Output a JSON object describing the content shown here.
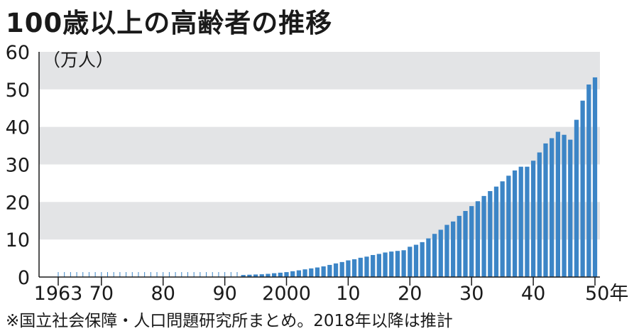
{
  "title": "100歳以上の高齢者の推移",
  "note": "※国立社会保障・人口問題研究所まとめ。2018年以降は推計",
  "colors": {
    "bar": "#3c85c6",
    "band": "#e3e4e6",
    "axis": "#1a1a1a"
  },
  "chart_data": {
    "type": "bar",
    "title": "100歳以上の高齢者の推移",
    "ylabel": "（万人）",
    "xlabel": "",
    "ylim": [
      0,
      60
    ],
    "yticks": [
      "0",
      "10",
      "20",
      "30",
      "40",
      "50",
      "60"
    ],
    "xticks": [
      {
        "year": 1963,
        "label": "1963"
      },
      {
        "year": 1970,
        "label": "70"
      },
      {
        "year": 1980,
        "label": "80"
      },
      {
        "year": 1990,
        "label": "90"
      },
      {
        "year": 2000,
        "label": "2000"
      },
      {
        "year": 2010,
        "label": "10"
      },
      {
        "year": 2020,
        "label": "20"
      },
      {
        "year": 2030,
        "label": "30"
      },
      {
        "year": 2040,
        "label": "40"
      },
      {
        "year": 2050,
        "label": "50年"
      }
    ],
    "grid": "alternating horizontal bands",
    "categories": [
      1963,
      1964,
      1965,
      1966,
      1967,
      1968,
      1969,
      1970,
      1971,
      1972,
      1973,
      1974,
      1975,
      1976,
      1977,
      1978,
      1979,
      1980,
      1981,
      1982,
      1983,
      1984,
      1985,
      1986,
      1987,
      1988,
      1989,
      1990,
      1991,
      1992,
      1993,
      1994,
      1995,
      1996,
      1997,
      1998,
      1999,
      2000,
      2001,
      2002,
      2003,
      2004,
      2005,
      2006,
      2007,
      2008,
      2009,
      2010,
      2011,
      2012,
      2013,
      2014,
      2015,
      2016,
      2017,
      2018,
      2019,
      2020,
      2021,
      2022,
      2023,
      2024,
      2025,
      2026,
      2027,
      2028,
      2029,
      2030,
      2031,
      2032,
      2033,
      2034,
      2035,
      2036,
      2037,
      2038,
      2039,
      2040,
      2041,
      2042,
      2043,
      2044,
      2045,
      2046,
      2047,
      2048,
      2049,
      2050
    ],
    "values": [
      0.02,
      0.02,
      0.02,
      0.03,
      0.03,
      0.03,
      0.03,
      0.03,
      0.03,
      0.04,
      0.05,
      0.06,
      0.06,
      0.07,
      0.08,
      0.09,
      0.09,
      0.1,
      0.11,
      0.12,
      0.14,
      0.16,
      0.19,
      0.22,
      0.25,
      0.28,
      0.32,
      0.4,
      0.43,
      0.48,
      0.55,
      0.62,
      0.68,
      0.74,
      0.85,
      1.02,
      1.16,
      1.31,
      1.55,
      1.79,
      2.05,
      2.3,
      2.55,
      2.84,
      3.23,
      3.63,
      4.0,
      4.44,
      4.74,
      5.14,
      5.44,
      5.87,
      6.16,
      6.54,
      6.79,
      6.96,
      7.14,
      8.07,
      8.6,
      9.3,
      10.3,
      11.5,
      12.6,
      13.9,
      14.8,
      16.3,
      17.6,
      18.9,
      20.2,
      21.6,
      22.9,
      24.1,
      25.5,
      27.0,
      28.4,
      29.4,
      29.4,
      31.0,
      33.2,
      35.6,
      37.0,
      38.7,
      37.9,
      36.6,
      41.9,
      47.0,
      51.3,
      53.2
    ]
  }
}
